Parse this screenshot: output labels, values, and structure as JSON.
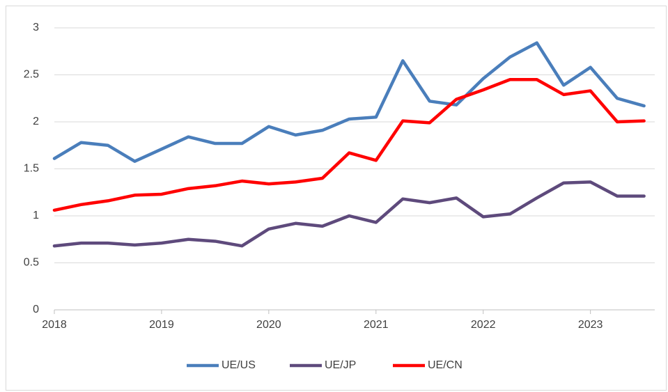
{
  "chart_data": {
    "type": "line",
    "x": [
      2018,
      2018.25,
      2018.5,
      2018.75,
      2019,
      2019.25,
      2019.5,
      2019.75,
      2020,
      2020.25,
      2020.5,
      2020.75,
      2021,
      2021.25,
      2021.5,
      2021.75,
      2022,
      2022.25,
      2022.5,
      2022.75,
      2023,
      2023.25,
      2023.5
    ],
    "series": [
      {
        "name": "UE/US",
        "color": "#4a7ebb",
        "values": [
          1.61,
          1.78,
          1.75,
          1.58,
          1.71,
          1.84,
          1.77,
          1.77,
          1.95,
          1.86,
          1.91,
          2.03,
          2.05,
          2.65,
          2.22,
          2.18,
          2.46,
          2.69,
          2.84,
          2.39,
          2.58,
          2.25,
          2.17
        ]
      },
      {
        "name": "UE/JP",
        "color": "#5e4a7c",
        "values": [
          0.68,
          0.71,
          0.71,
          0.69,
          0.71,
          0.75,
          0.73,
          0.68,
          0.86,
          0.92,
          0.89,
          1.0,
          0.93,
          1.18,
          1.14,
          1.19,
          0.99,
          1.02,
          1.19,
          1.35,
          1.36,
          1.21,
          1.21
        ]
      },
      {
        "name": "UE/CN",
        "color": "#ff0000",
        "values": [
          1.06,
          1.12,
          1.16,
          1.22,
          1.23,
          1.29,
          1.32,
          1.37,
          1.34,
          1.36,
          1.4,
          1.67,
          1.59,
          2.01,
          1.99,
          2.24,
          2.34,
          2.45,
          2.45,
          2.29,
          2.33,
          2.0,
          2.01
        ]
      }
    ],
    "xlim": [
      2018,
      2023.6
    ],
    "xticks": [
      2018,
      2019,
      2020,
      2021,
      2022,
      2023
    ],
    "ylim": [
      0,
      3
    ],
    "yticks": [
      0,
      0.5,
      1,
      1.5,
      2,
      2.5,
      3
    ],
    "grid": true,
    "legend": "bottom"
  }
}
